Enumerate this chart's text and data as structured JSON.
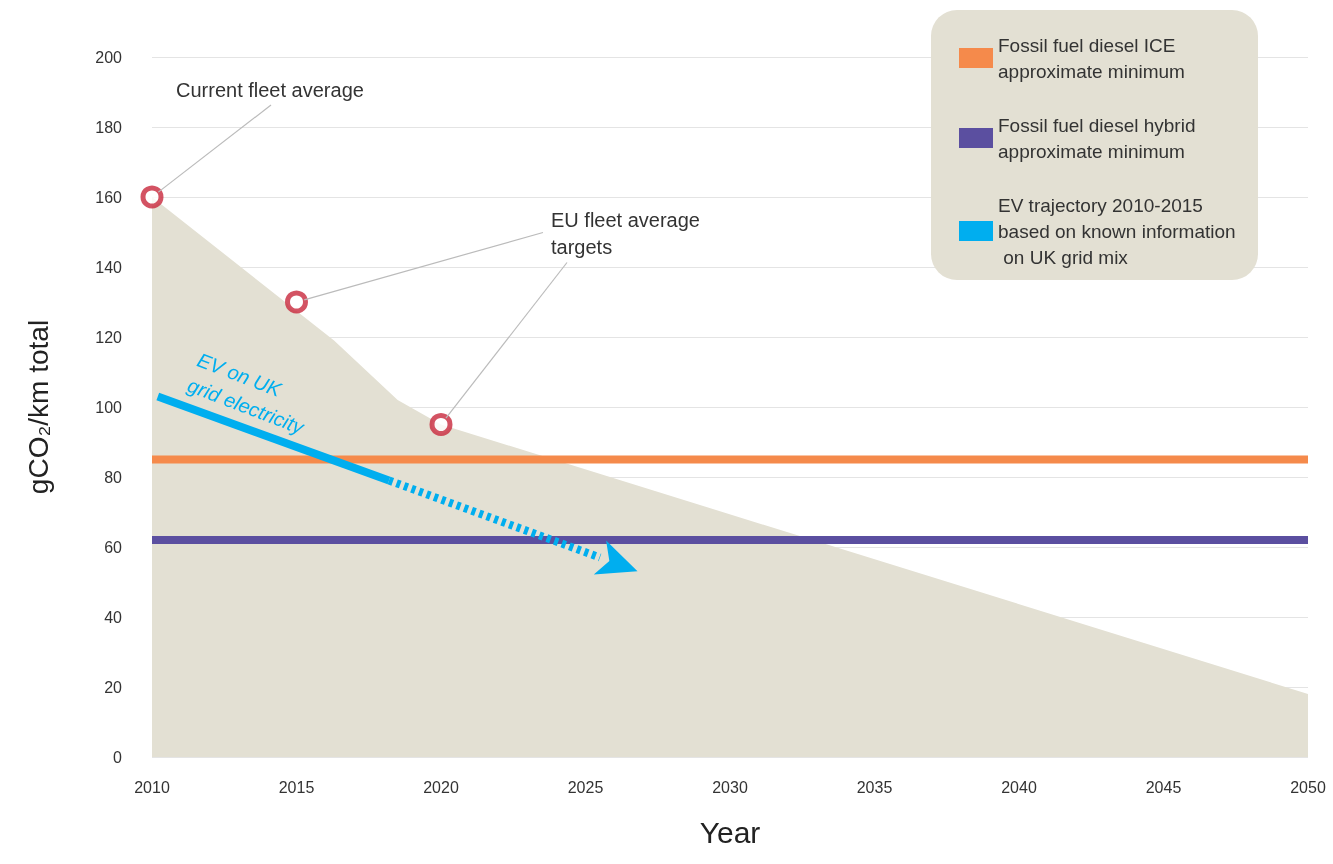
{
  "chart_data": {
    "type": "line",
    "xlabel": "Year",
    "ylabel": "gCO₂/km total",
    "xlim": [
      2010,
      2050
    ],
    "xticks": [
      2010,
      2015,
      2020,
      2025,
      2030,
      2035,
      2040,
      2045,
      2050
    ],
    "ylim": [
      0,
      200
    ],
    "yticks": [
      0,
      20,
      40,
      60,
      80,
      100,
      120,
      140,
      160,
      180,
      200
    ],
    "grid": "y",
    "legend": "top right",
    "series": [
      {
        "type": "area",
        "color": "#e3e0d3",
        "x": [
          2010,
          2016.3,
          2018.5,
          2020,
          2050
        ],
        "values": [
          160,
          119,
          102,
          95,
          18
        ]
      },
      {
        "name": "Fossil fuel diesel ICE approximate minimum",
        "color": "#f58a4b",
        "x": [
          2010,
          2050
        ],
        "values": [
          85,
          85
        ]
      },
      {
        "name": "Fossil fuel diesel hybrid approximate minimum",
        "color": "#5b4fa0",
        "x": [
          2010,
          2050
        ],
        "values": [
          62,
          62
        ]
      },
      {
        "name": "EV trajectory 2010-2015 based on known information on UK grid mix",
        "color": "#00aeef",
        "line_style": "solid",
        "x": [
          2010.2,
          2018.2
        ],
        "values": [
          103,
          79
        ]
      },
      {
        "color": "#00aeef",
        "line_style": "dotted",
        "x": [
          2018.2,
          2025.5
        ],
        "values": [
          79,
          57
        ]
      },
      {
        "type": "scatter",
        "color": "#c8283c",
        "marker": "circle",
        "x": [
          2010,
          2015,
          2020
        ],
        "values": [
          160,
          130,
          95
        ]
      }
    ],
    "annotations": [
      {
        "text": "Current fleet average",
        "x": 2010,
        "y": 160
      },
      {
        "text": "EU fleet average targets",
        "x": 2020,
        "y": 95
      },
      {
        "text": "EV on UK grid electricity",
        "x": 2012,
        "y": 97
      }
    ]
  }
}
